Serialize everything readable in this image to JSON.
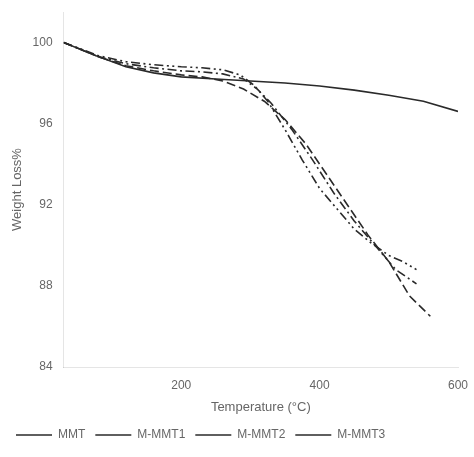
{
  "chart_data": {
    "type": "line",
    "xlabel": "Temperature (°C)",
    "ylabel": "Weight Loss%",
    "xlim": [
      30,
      600
    ],
    "ylim": [
      84,
      101.5
    ],
    "xticks": [
      200,
      400,
      600
    ],
    "yticks": [
      84,
      88,
      92,
      96,
      100
    ],
    "grid": false,
    "legend": "lower left",
    "series": [
      {
        "name": "MMT",
        "color": "#2a2a2a",
        "line_style": "solid",
        "x": [
          30,
          80,
          120,
          160,
          200,
          250,
          300,
          350,
          400,
          450,
          500,
          550,
          600
        ],
        "values": [
          100.0,
          99.3,
          98.8,
          98.5,
          98.3,
          98.2,
          98.1,
          98.0,
          97.85,
          97.65,
          97.4,
          97.1,
          96.6
        ]
      },
      {
        "name": "M-MMT1",
        "color": "#2a2a2a",
        "line_style": "dashed",
        "x": [
          30,
          80,
          120,
          160,
          200,
          230,
          260,
          290,
          320,
          350,
          380,
          410,
          440,
          470,
          500,
          530,
          560
        ],
        "values": [
          100.0,
          99.3,
          98.85,
          98.6,
          98.4,
          98.3,
          98.1,
          97.7,
          97.1,
          96.2,
          95.0,
          93.5,
          92.0,
          90.5,
          89.2,
          87.5,
          86.5
        ]
      },
      {
        "name": "M-MMT2",
        "color": "#2a2a2a",
        "line_style": "dashdot",
        "x": [
          30,
          80,
          120,
          160,
          200,
          230,
          260,
          290,
          310,
          330,
          360,
          390,
          420,
          450,
          480,
          510,
          540
        ],
        "values": [
          100.0,
          99.3,
          98.95,
          98.75,
          98.6,
          98.55,
          98.45,
          98.2,
          97.7,
          97.0,
          95.7,
          94.2,
          92.6,
          91.2,
          90.0,
          88.8,
          88.1
        ]
      },
      {
        "name": "M-MMT3",
        "color": "#2a2a2a",
        "line_style": "densely_dashdotdot",
        "x": [
          30,
          80,
          120,
          160,
          200,
          230,
          260,
          285,
          305,
          325,
          350,
          375,
          400,
          425,
          450,
          475,
          500,
          520,
          540
        ],
        "values": [
          100.0,
          99.35,
          99.05,
          98.9,
          98.8,
          98.75,
          98.65,
          98.4,
          97.9,
          97.1,
          95.7,
          94.2,
          92.8,
          91.8,
          90.8,
          90.1,
          89.5,
          89.2,
          88.8
        ]
      }
    ]
  }
}
